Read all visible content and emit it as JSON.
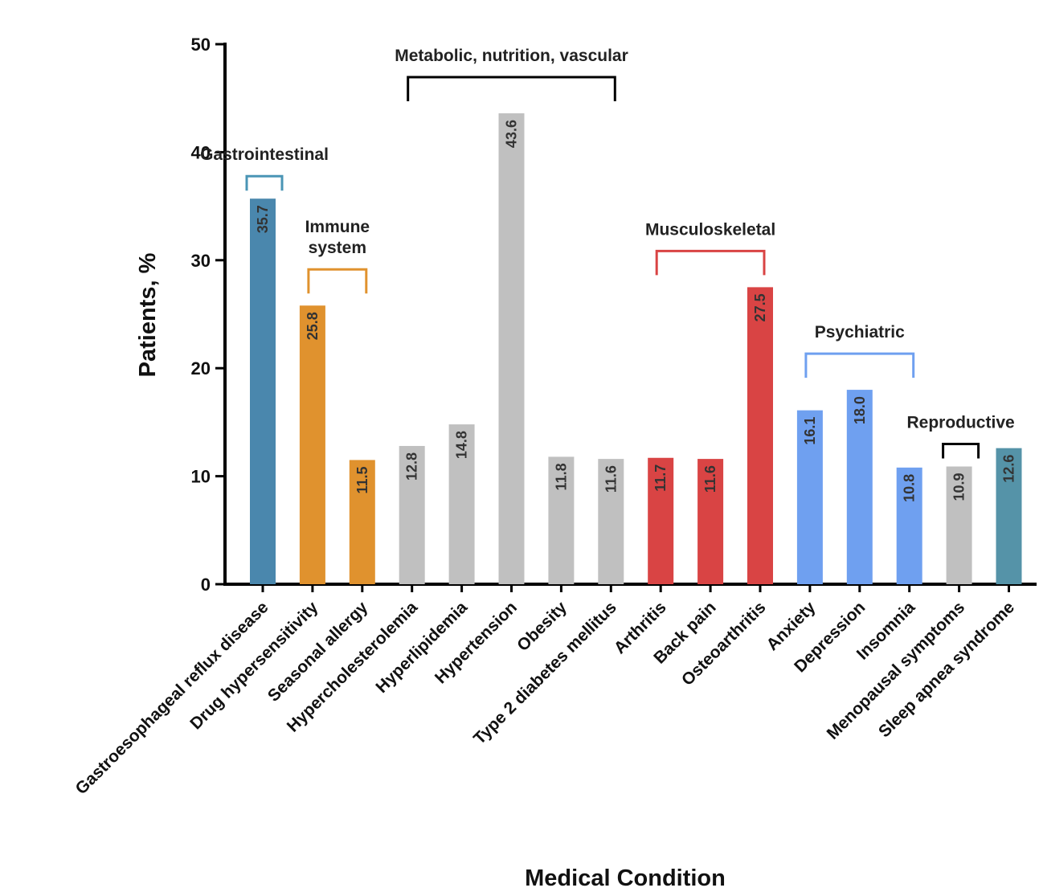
{
  "chart_data": {
    "type": "bar",
    "xlabel": "Medical Condition",
    "ylabel": "Patients, %",
    "ylim": [
      0,
      50
    ],
    "yticks": [
      0,
      10,
      20,
      30,
      40,
      50
    ],
    "grid": false,
    "categories": [
      "Gastroesophageal reflux disease",
      "Drug hypersensitivity",
      "Seasonal allergy",
      "Hypercholesterolemia",
      "Hyperlipidemia",
      "Hypertension",
      "Obesity",
      "Type 2 diabetes mellitus",
      "Arthritis",
      "Back pain",
      "Osteoarthritis",
      "Anxiety",
      "Depression",
      "Insomnia",
      "Menopausal symptoms",
      "Sleep apnea syndrome"
    ],
    "values": [
      35.7,
      25.8,
      11.5,
      12.8,
      14.8,
      43.6,
      11.8,
      11.6,
      11.7,
      11.6,
      27.5,
      16.1,
      18.0,
      10.8,
      10.9,
      12.6
    ],
    "value_labels": [
      "35.7",
      "25.8",
      "11.5",
      "12.8",
      "14.8",
      "43.6",
      "11.8",
      "11.6",
      "11.7",
      "11.6",
      "27.5",
      "16.1",
      "18.0",
      "10.8",
      "10.9",
      "12.6"
    ],
    "bar_colors": [
      "#4a87ad",
      "#e0922e",
      "#e0922e",
      "#c0c0c0",
      "#c0c0c0",
      "#c0c0c0",
      "#c0c0c0",
      "#c0c0c0",
      "#d94444",
      "#d94444",
      "#d94444",
      "#6fa0f0",
      "#6fa0f0",
      "#6fa0f0",
      "#c0c0c0",
      "#5593a8"
    ],
    "groups": [
      {
        "label_lines": [
          "Gastrointestinal"
        ],
        "color": "#4a95b5",
        "from": 0,
        "to": 0
      },
      {
        "label_lines": [
          "Immune",
          "system"
        ],
        "color": "#e0922e",
        "from": 1,
        "to": 2
      },
      {
        "label_lines": [
          "Metabolic, nutrition, vascular"
        ],
        "color": "#000000",
        "from": 3,
        "to": 7
      },
      {
        "label_lines": [
          "Musculoskeletal"
        ],
        "color": "#d94444",
        "from": 8,
        "to": 10
      },
      {
        "label_lines": [
          "Psychiatric"
        ],
        "color": "#6fa0f0",
        "from": 11,
        "to": 13
      },
      {
        "label_lines": [
          "Reproductive"
        ],
        "color": "#000000",
        "from": 14,
        "to": 14
      }
    ]
  }
}
